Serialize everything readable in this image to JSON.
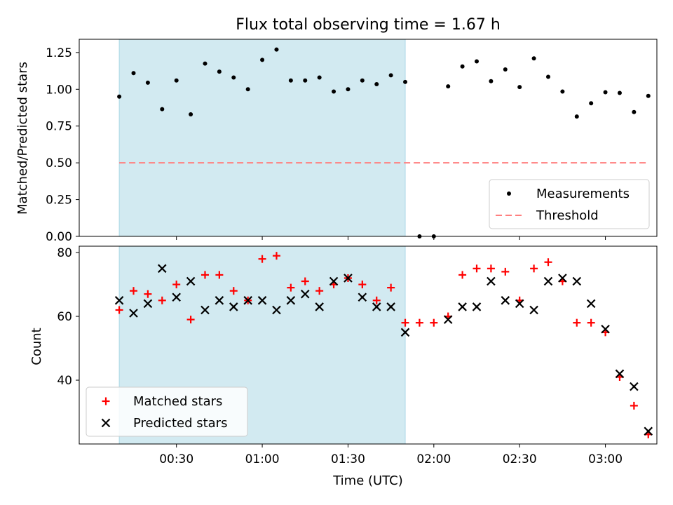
{
  "chart_data": {
    "title": "Flux total observing time = 1.67 h",
    "xlabel": "Time (UTC)",
    "x_tick_labels": [
      "00:30",
      "01:00",
      "01:30",
      "02:00",
      "02:30",
      "03:00"
    ],
    "x_tick_minutes": [
      30,
      60,
      90,
      120,
      150,
      180
    ],
    "xlim": [
      -4,
      198
    ],
    "shaded_interval": [
      10,
      110
    ],
    "colors": {
      "shade": "#add8e6",
      "matched": "#ff0000",
      "predicted": "#000000",
      "threshold": "#ff7f7f",
      "measurement": "#000000"
    },
    "panels": [
      {
        "type": "scatter",
        "ylabel": "Matched/Predicted stars",
        "ylim": [
          0,
          1.34
        ],
        "y_ticks": [
          0.0,
          0.25,
          0.5,
          0.75,
          1.0,
          1.25
        ],
        "y_tick_labels": [
          "0.00",
          "0.25",
          "0.50",
          "0.75",
          "1.00",
          "1.25"
        ],
        "legend_position": "lower-right",
        "series": [
          {
            "name": "Measurements",
            "x": [
              10,
              15,
              20,
              25,
              30,
              35,
              40,
              45,
              50,
              55,
              60,
              65,
              70,
              75,
              80,
              85,
              90,
              95,
              100,
              105,
              110,
              115,
              120,
              125,
              130,
              135,
              140,
              145,
              150,
              155,
              160,
              165,
              170,
              175,
              180,
              185,
              190,
              195
            ],
            "y": [
              0.95,
              1.11,
              1.045,
              0.865,
              1.06,
              0.83,
              1.175,
              1.12,
              1.08,
              1.0,
              1.2,
              1.27,
              1.06,
              1.06,
              1.08,
              0.985,
              1.0,
              1.06,
              1.035,
              1.095,
              1.05,
              0.0,
              0.0,
              1.02,
              1.155,
              1.19,
              1.055,
              1.135,
              1.015,
              1.21,
              1.085,
              0.985,
              0.815,
              0.905,
              0.98,
              0.975,
              0.845,
              0.955
            ]
          },
          {
            "name": "Threshold",
            "x": [
              10,
              195
            ],
            "y": [
              0.5,
              0.5
            ]
          }
        ]
      },
      {
        "type": "scatter",
        "ylabel": "Count",
        "ylim": [
          20,
          82
        ],
        "y_ticks": [
          40,
          60,
          80
        ],
        "y_tick_labels": [
          "40",
          "60",
          "80"
        ],
        "legend_position": "lower-left",
        "series": [
          {
            "name": "Matched stars",
            "x": [
              10,
              15,
              20,
              25,
              30,
              35,
              40,
              45,
              50,
              55,
              60,
              65,
              70,
              75,
              80,
              85,
              90,
              95,
              100,
              105,
              110,
              115,
              120,
              125,
              130,
              135,
              140,
              145,
              150,
              155,
              160,
              165,
              170,
              175,
              180,
              185,
              190,
              195
            ],
            "y": [
              62,
              68,
              67,
              65,
              70,
              59,
              73,
              73,
              68,
              65,
              78,
              79,
              69,
              71,
              68,
              70,
              72,
              70,
              65,
              69,
              58,
              58,
              58,
              60,
              73,
              75,
              75,
              74,
              65,
              75,
              77,
              71,
              58,
              58,
              55,
              41,
              32,
              23
            ]
          },
          {
            "name": "Predicted stars",
            "x": [
              10,
              15,
              20,
              25,
              30,
              35,
              40,
              45,
              50,
              55,
              60,
              65,
              70,
              75,
              80,
              85,
              90,
              95,
              100,
              105,
              110,
              125,
              130,
              135,
              140,
              145,
              150,
              155,
              160,
              165,
              170,
              175,
              180,
              185,
              190,
              195
            ],
            "y": [
              65,
              61,
              64,
              75,
              66,
              71,
              62,
              65,
              63,
              65,
              65,
              62,
              65,
              67,
              63,
              71,
              72,
              66,
              63,
              63,
              55,
              59,
              63,
              63,
              71,
              65,
              64,
              62,
              71,
              72,
              71,
              64,
              56,
              42,
              38,
              24
            ]
          }
        ]
      }
    ]
  }
}
